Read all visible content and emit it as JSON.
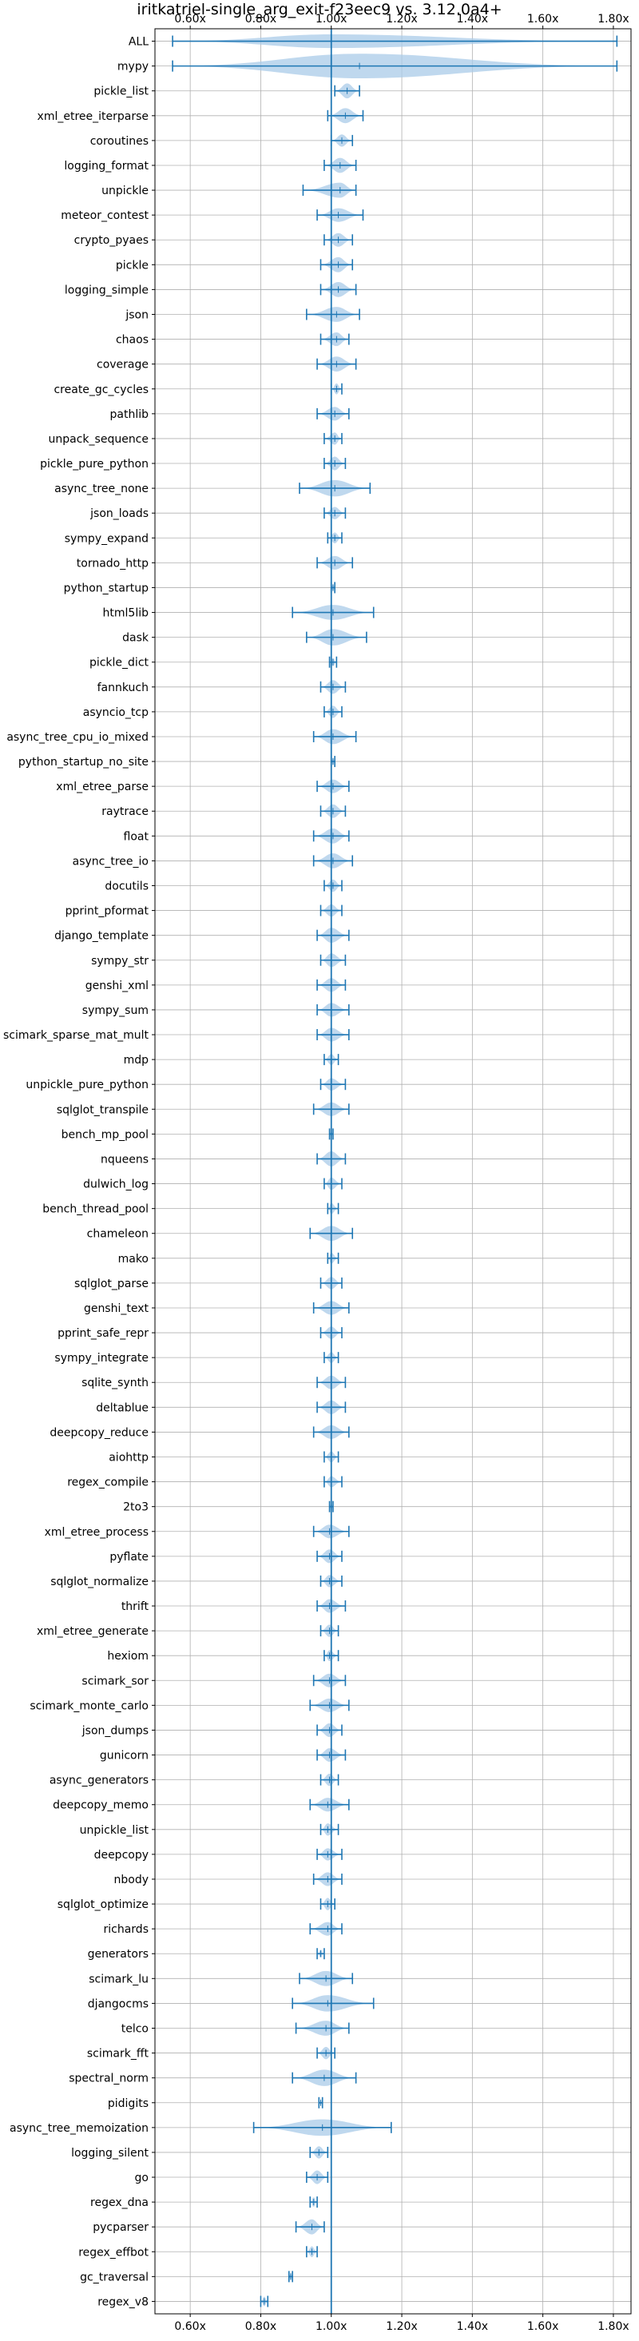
{
  "colors": {
    "violin_fill": "#a9cbe8",
    "whisker": "#1f77b4",
    "grid": "#b0b0b0",
    "axis": "#000000"
  },
  "chart_data": {
    "type": "violin",
    "title": "iritkatriel-single_arg_exit-f23eec9 vs. 3.12.0a4+",
    "xlabel": "",
    "ylabel": "",
    "xlim": [
      0.5,
      1.85
    ],
    "x_ticks": [
      0.6,
      0.8,
      1.0,
      1.2,
      1.4,
      1.6,
      1.8
    ],
    "x_tick_labels": [
      "0.60x",
      "0.80x",
      "1.00x",
      "1.20x",
      "1.40x",
      "1.60x",
      "1.80x"
    ],
    "x_ticks_top_and_bottom": true,
    "reference_line": 1.0,
    "grid": true,
    "categories": [
      "ALL",
      "mypy",
      "pickle_list",
      "xml_etree_iterparse",
      "coroutines",
      "logging_format",
      "unpickle",
      "meteor_contest",
      "crypto_pyaes",
      "pickle",
      "logging_simple",
      "json",
      "chaos",
      "coverage",
      "create_gc_cycles",
      "pathlib",
      "unpack_sequence",
      "pickle_pure_python",
      "async_tree_none",
      "json_loads",
      "sympy_expand",
      "tornado_http",
      "python_startup",
      "html5lib",
      "dask",
      "pickle_dict",
      "fannkuch",
      "asyncio_tcp",
      "async_tree_cpu_io_mixed",
      "python_startup_no_site",
      "xml_etree_parse",
      "raytrace",
      "float",
      "async_tree_io",
      "docutils",
      "pprint_pformat",
      "django_template",
      "sympy_str",
      "genshi_xml",
      "sympy_sum",
      "scimark_sparse_mat_mult",
      "mdp",
      "unpickle_pure_python",
      "sqlglot_transpile",
      "bench_mp_pool",
      "nqueens",
      "dulwich_log",
      "bench_thread_pool",
      "chameleon",
      "mako",
      "sqlglot_parse",
      "genshi_text",
      "pprint_safe_repr",
      "sympy_integrate",
      "sqlite_synth",
      "deltablue",
      "deepcopy_reduce",
      "aiohttp",
      "regex_compile",
      "2to3",
      "xml_etree_process",
      "pyflate",
      "sqlglot_normalize",
      "thrift",
      "xml_etree_generate",
      "hexiom",
      "scimark_sor",
      "scimark_monte_carlo",
      "json_dumps",
      "gunicorn",
      "async_generators",
      "deepcopy_memo",
      "unpickle_list",
      "deepcopy",
      "nbody",
      "sqlglot_optimize",
      "richards",
      "generators",
      "scimark_lu",
      "djangocms",
      "telco",
      "scimark_fft",
      "spectral_norm",
      "pidigits",
      "async_tree_memoization",
      "logging_silent",
      "go",
      "regex_dna",
      "pycparser",
      "regex_effbot",
      "gc_traversal",
      "regex_v8"
    ],
    "series": [
      {
        "min": 0.55,
        "max": 1.81,
        "mean": 1.0,
        "width": 0.5
      },
      {
        "min": 0.55,
        "max": 1.81,
        "mean": 1.08,
        "width": 0.9
      },
      {
        "min": 1.01,
        "max": 1.08,
        "mean": 1.045,
        "width": 0.55
      },
      {
        "min": 0.99,
        "max": 1.09,
        "mean": 1.04,
        "width": 0.55
      },
      {
        "min": 1.0,
        "max": 1.06,
        "mean": 1.03,
        "width": 0.45
      },
      {
        "min": 0.98,
        "max": 1.07,
        "mean": 1.025,
        "width": 0.55
      },
      {
        "min": 0.92,
        "max": 1.07,
        "mean": 1.025,
        "width": 0.55
      },
      {
        "min": 0.96,
        "max": 1.09,
        "mean": 1.02,
        "width": 0.5
      },
      {
        "min": 0.98,
        "max": 1.06,
        "mean": 1.02,
        "width": 0.5
      },
      {
        "min": 0.97,
        "max": 1.06,
        "mean": 1.02,
        "width": 0.55
      },
      {
        "min": 0.97,
        "max": 1.07,
        "mean": 1.02,
        "width": 0.55
      },
      {
        "min": 0.93,
        "max": 1.08,
        "mean": 1.015,
        "width": 0.55
      },
      {
        "min": 0.97,
        "max": 1.05,
        "mean": 1.015,
        "width": 0.5
      },
      {
        "min": 0.96,
        "max": 1.07,
        "mean": 1.015,
        "width": 0.55
      },
      {
        "min": 1.0,
        "max": 1.03,
        "mean": 1.015,
        "width": 0.4
      },
      {
        "min": 0.96,
        "max": 1.05,
        "mean": 1.01,
        "width": 0.5
      },
      {
        "min": 0.98,
        "max": 1.03,
        "mean": 1.01,
        "width": 0.45
      },
      {
        "min": 0.98,
        "max": 1.04,
        "mean": 1.01,
        "width": 0.5
      },
      {
        "min": 0.91,
        "max": 1.11,
        "mean": 1.01,
        "width": 0.6
      },
      {
        "min": 0.98,
        "max": 1.04,
        "mean": 1.01,
        "width": 0.45
      },
      {
        "min": 0.99,
        "max": 1.03,
        "mean": 1.01,
        "width": 0.4
      },
      {
        "min": 0.96,
        "max": 1.06,
        "mean": 1.01,
        "width": 0.5
      },
      {
        "min": 1.0,
        "max": 1.01,
        "mean": 1.005,
        "width": 0.3
      },
      {
        "min": 0.89,
        "max": 1.12,
        "mean": 1.005,
        "width": 0.55
      },
      {
        "min": 0.93,
        "max": 1.1,
        "mean": 1.005,
        "width": 0.6
      },
      {
        "min": 0.995,
        "max": 1.015,
        "mean": 1.005,
        "width": 0.3
      },
      {
        "min": 0.97,
        "max": 1.04,
        "mean": 1.005,
        "width": 0.5
      },
      {
        "min": 0.98,
        "max": 1.03,
        "mean": 1.005,
        "width": 0.45
      },
      {
        "min": 0.95,
        "max": 1.07,
        "mean": 1.005,
        "width": 0.55
      },
      {
        "min": 1.0,
        "max": 1.01,
        "mean": 1.005,
        "width": 0.3
      },
      {
        "min": 0.96,
        "max": 1.05,
        "mean": 1.005,
        "width": 0.5
      },
      {
        "min": 0.97,
        "max": 1.04,
        "mean": 1.005,
        "width": 0.5
      },
      {
        "min": 0.95,
        "max": 1.05,
        "mean": 1.005,
        "width": 0.55
      },
      {
        "min": 0.95,
        "max": 1.06,
        "mean": 1.005,
        "width": 0.55
      },
      {
        "min": 0.98,
        "max": 1.03,
        "mean": 1.005,
        "width": 0.45
      },
      {
        "min": 0.97,
        "max": 1.03,
        "mean": 1.0,
        "width": 0.45
      },
      {
        "min": 0.96,
        "max": 1.05,
        "mean": 1.0,
        "width": 0.55
      },
      {
        "min": 0.97,
        "max": 1.04,
        "mean": 1.0,
        "width": 0.5
      },
      {
        "min": 0.96,
        "max": 1.04,
        "mean": 1.0,
        "width": 0.5
      },
      {
        "min": 0.96,
        "max": 1.05,
        "mean": 1.0,
        "width": 0.5
      },
      {
        "min": 0.96,
        "max": 1.05,
        "mean": 1.0,
        "width": 0.5
      },
      {
        "min": 0.98,
        "max": 1.02,
        "mean": 1.0,
        "width": 0.4
      },
      {
        "min": 0.97,
        "max": 1.04,
        "mean": 1.0,
        "width": 0.45
      },
      {
        "min": 0.95,
        "max": 1.05,
        "mean": 1.0,
        "width": 0.5
      },
      {
        "min": 0.995,
        "max": 1.005,
        "mean": 1.0,
        "width": 0.25
      },
      {
        "min": 0.96,
        "max": 1.04,
        "mean": 1.0,
        "width": 0.55
      },
      {
        "min": 0.98,
        "max": 1.03,
        "mean": 1.0,
        "width": 0.45
      },
      {
        "min": 0.99,
        "max": 1.02,
        "mean": 1.0,
        "width": 0.4
      },
      {
        "min": 0.94,
        "max": 1.06,
        "mean": 1.0,
        "width": 0.55
      },
      {
        "min": 0.99,
        "max": 1.02,
        "mean": 1.0,
        "width": 0.4
      },
      {
        "min": 0.97,
        "max": 1.03,
        "mean": 1.0,
        "width": 0.45
      },
      {
        "min": 0.95,
        "max": 1.05,
        "mean": 1.0,
        "width": 0.5
      },
      {
        "min": 0.97,
        "max": 1.03,
        "mean": 1.0,
        "width": 0.45
      },
      {
        "min": 0.98,
        "max": 1.02,
        "mean": 1.0,
        "width": 0.4
      },
      {
        "min": 0.96,
        "max": 1.04,
        "mean": 1.0,
        "width": 0.5
      },
      {
        "min": 0.96,
        "max": 1.04,
        "mean": 1.0,
        "width": 0.5
      },
      {
        "min": 0.95,
        "max": 1.05,
        "mean": 1.0,
        "width": 0.5
      },
      {
        "min": 0.98,
        "max": 1.02,
        "mean": 1.0,
        "width": 0.4
      },
      {
        "min": 0.98,
        "max": 1.03,
        "mean": 1.0,
        "width": 0.4
      },
      {
        "min": 0.995,
        "max": 1.005,
        "mean": 1.0,
        "width": 0.3
      },
      {
        "min": 0.95,
        "max": 1.05,
        "mean": 0.995,
        "width": 0.5
      },
      {
        "min": 0.96,
        "max": 1.03,
        "mean": 0.995,
        "width": 0.5
      },
      {
        "min": 0.97,
        "max": 1.03,
        "mean": 0.995,
        "width": 0.45
      },
      {
        "min": 0.96,
        "max": 1.04,
        "mean": 0.995,
        "width": 0.5
      },
      {
        "min": 0.97,
        "max": 1.02,
        "mean": 0.995,
        "width": 0.45
      },
      {
        "min": 0.98,
        "max": 1.02,
        "mean": 0.995,
        "width": 0.4
      },
      {
        "min": 0.95,
        "max": 1.04,
        "mean": 0.995,
        "width": 0.5
      },
      {
        "min": 0.94,
        "max": 1.05,
        "mean": 0.995,
        "width": 0.5
      },
      {
        "min": 0.96,
        "max": 1.03,
        "mean": 0.995,
        "width": 0.5
      },
      {
        "min": 0.96,
        "max": 1.04,
        "mean": 0.995,
        "width": 0.5
      },
      {
        "min": 0.97,
        "max": 1.02,
        "mean": 0.995,
        "width": 0.45
      },
      {
        "min": 0.94,
        "max": 1.05,
        "mean": 0.99,
        "width": 0.5
      },
      {
        "min": 0.97,
        "max": 1.02,
        "mean": 0.99,
        "width": 0.45
      },
      {
        "min": 0.96,
        "max": 1.03,
        "mean": 0.99,
        "width": 0.45
      },
      {
        "min": 0.95,
        "max": 1.03,
        "mean": 0.99,
        "width": 0.5
      },
      {
        "min": 0.97,
        "max": 1.01,
        "mean": 0.99,
        "width": 0.45
      },
      {
        "min": 0.94,
        "max": 1.03,
        "mean": 0.99,
        "width": 0.5
      },
      {
        "min": 0.96,
        "max": 0.98,
        "mean": 0.97,
        "width": 0.3
      },
      {
        "min": 0.91,
        "max": 1.06,
        "mean": 0.985,
        "width": 0.55
      },
      {
        "min": 0.89,
        "max": 1.12,
        "mean": 0.99,
        "width": 0.6
      },
      {
        "min": 0.9,
        "max": 1.05,
        "mean": 0.985,
        "width": 0.55
      },
      {
        "min": 0.96,
        "max": 1.01,
        "mean": 0.985,
        "width": 0.45
      },
      {
        "min": 0.89,
        "max": 1.07,
        "mean": 0.98,
        "width": 0.6
      },
      {
        "min": 0.965,
        "max": 0.975,
        "mean": 0.97,
        "width": 0.2
      },
      {
        "min": 0.78,
        "max": 1.17,
        "mean": 0.975,
        "width": 0.6
      },
      {
        "min": 0.94,
        "max": 0.99,
        "mean": 0.965,
        "width": 0.45
      },
      {
        "min": 0.93,
        "max": 0.99,
        "mean": 0.96,
        "width": 0.5
      },
      {
        "min": 0.94,
        "max": 0.96,
        "mean": 0.95,
        "width": 0.35
      },
      {
        "min": 0.9,
        "max": 0.98,
        "mean": 0.945,
        "width": 0.55
      },
      {
        "min": 0.93,
        "max": 0.96,
        "mean": 0.945,
        "width": 0.4
      },
      {
        "min": 0.88,
        "max": 0.89,
        "mean": 0.885,
        "width": 0.3
      },
      {
        "min": 0.8,
        "max": 0.82,
        "mean": 0.81,
        "width": 0.35
      }
    ]
  }
}
